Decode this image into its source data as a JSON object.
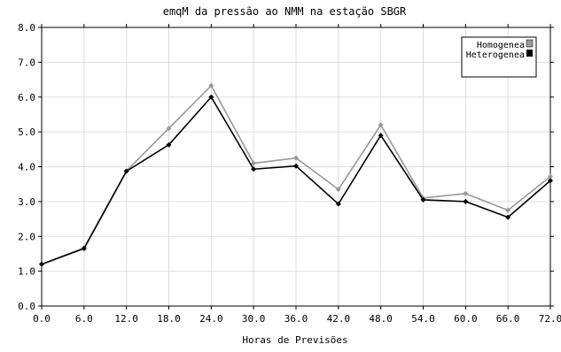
{
  "chart_data": {
    "type": "line",
    "title": "emqM da pressão ao NMM na estação SBGR",
    "xlabel": "Horas de Previsões",
    "ylabel": "",
    "x": [
      0,
      6,
      12,
      18,
      24,
      30,
      36,
      42,
      48,
      54,
      60,
      66,
      72
    ],
    "x_tick_labels": [
      "0.0",
      "6.0",
      "12.0",
      "18.0",
      "24.0",
      "30.0",
      "36.0",
      "42.0",
      "48.0",
      "54.0",
      "60.0",
      "66.0",
      "72.0"
    ],
    "y_tick_labels": [
      "0.0",
      "1.0",
      "2.0",
      "3.0",
      "4.0",
      "5.0",
      "6.0",
      "7.0",
      "8.0"
    ],
    "xlim": [
      0,
      72
    ],
    "ylim": [
      0,
      8
    ],
    "grid": true,
    "legend_position": "top-right",
    "series": [
      {
        "name": "Homogenea",
        "color": "#999999",
        "values": [
          1.2,
          1.67,
          3.88,
          5.1,
          6.33,
          4.1,
          4.25,
          3.35,
          5.2,
          3.1,
          3.23,
          2.75,
          3.72
        ]
      },
      {
        "name": "Heterogenea",
        "color": "#000000",
        "values": [
          1.2,
          1.65,
          3.87,
          4.63,
          6.0,
          3.93,
          4.02,
          2.93,
          4.9,
          3.05,
          3.0,
          2.55,
          3.6
        ]
      }
    ]
  }
}
